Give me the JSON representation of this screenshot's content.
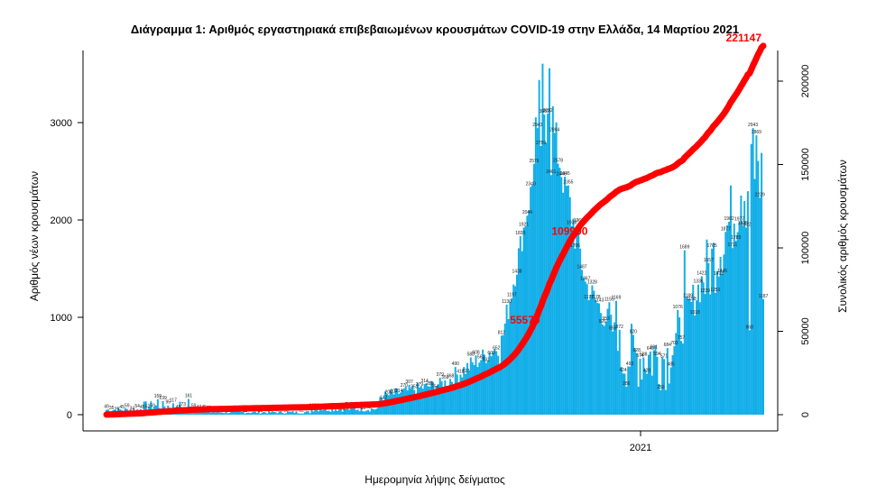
{
  "chart_data": {
    "type": "bar",
    "title": "Διάγραμμα 1: Αριθμός εργαστηριακά επιβεβαιωμένων κρουσμάτων COVID-19 στην Ελλάδα, 14 Μαρτίου 2021",
    "xlabel": "Ημερομηνία λήψης δείγματος",
    "ylabel_left": "Αριθμός νέων κρουσμάτων",
    "ylabel_right": "Συνολικός αριθμός κρουσμάτων",
    "x_tick_labels": [
      "2021"
    ],
    "ylim_left": [
      0,
      3700
    ],
    "ylim_right": [
      0,
      222000
    ],
    "yticks_left": [
      0,
      1000,
      2000,
      3000
    ],
    "yticks_right": [
      0,
      50000,
      100000,
      150000,
      200000
    ],
    "grid": false,
    "colors": {
      "bars": "#13aee8",
      "cumulative": "#ff0000",
      "title": "#000000"
    },
    "series": [
      {
        "name": "daily",
        "axis": "left",
        "note_values": "approximate daily new cases read from bars, from late February 2020 to 14 March 2021",
        "values": [],
        "key_points": [
          {
            "label": "3605",
            "value": 3605
          },
          {
            "label": "3558",
            "value": 3558
          },
          {
            "label": "3082",
            "value": 3082
          },
          {
            "label": "3092",
            "value": 3092
          },
          {
            "label": "2943",
            "value": 2943
          },
          {
            "label": "2445",
            "value": 2445
          },
          {
            "label": "2536",
            "value": 2536
          },
          {
            "label": "2250",
            "value": 2250
          },
          {
            "label": "1883",
            "value": 1883
          },
          {
            "label": "1689",
            "value": 1689
          },
          {
            "label": "1169",
            "value": 1169
          },
          {
            "label": "1155",
            "value": 1155
          },
          {
            "label": "1076",
            "value": 1076
          },
          {
            "label": "1187",
            "value": 1187
          },
          {
            "label": "868",
            "value": 868
          },
          {
            "label": "161",
            "value": 161
          },
          {
            "label": "159",
            "value": 159
          }
        ]
      },
      {
        "name": "cumulative",
        "axis": "right",
        "labels": [
          {
            "text": "55570",
            "value": 55570
          },
          {
            "text": "109990",
            "value": 109990
          },
          {
            "text": "221147",
            "value": 221147
          }
        ]
      }
    ]
  }
}
